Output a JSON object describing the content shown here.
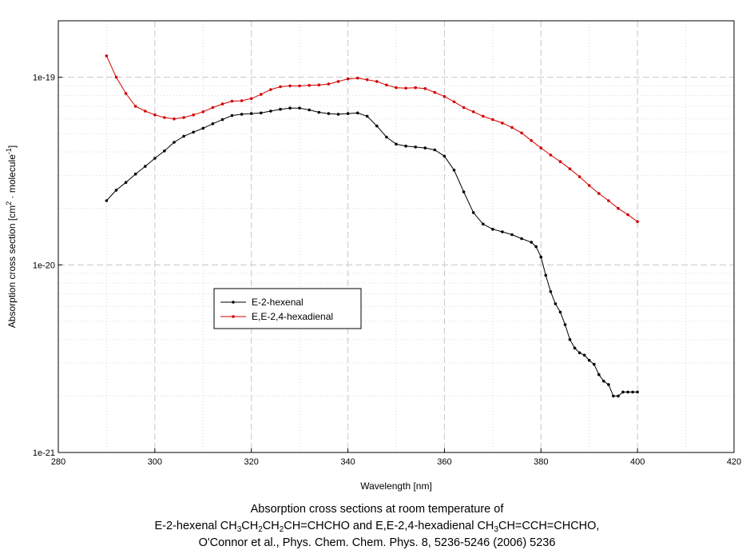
{
  "chart_data": {
    "type": "line",
    "xlabel": "Wavelength [nm]",
    "ylabel_prefix": "Absorption cross section [cm",
    "ylabel_sup1": "2",
    "ylabel_mid": " · molecule",
    "ylabel_sup2": "-1",
    "ylabel_suffix": "]",
    "x_ticks": [
      "280",
      "300",
      "320",
      "340",
      "360",
      "380",
      "400",
      "420"
    ],
    "y_ticks": [
      "1e-21",
      "1e-20",
      "1e-19"
    ],
    "xlim": [
      280,
      420
    ],
    "ylim": [
      1e-21,
      2e-19
    ],
    "yscale": "log",
    "grid": true,
    "legend_position": "center-left",
    "series": [
      {
        "name": "E-2-hexenal",
        "color": "#000000",
        "x": [
          290,
          292,
          294,
          296,
          298,
          300,
          302,
          304,
          306,
          308,
          310,
          312,
          314,
          316,
          318,
          320,
          322,
          324,
          326,
          328,
          330,
          332,
          334,
          336,
          338,
          340,
          342,
          344,
          346,
          348,
          350,
          352,
          354,
          356,
          358,
          360,
          362,
          364,
          366,
          368,
          370,
          372,
          374,
          376,
          378,
          379,
          380,
          381,
          382,
          383,
          384,
          385,
          386,
          387,
          388,
          389,
          390,
          391,
          392,
          393,
          394,
          395,
          396,
          397,
          398,
          399,
          400
        ],
        "y": [
          2.2e-20,
          2.5e-20,
          2.75e-20,
          3.05e-20,
          3.35e-20,
          3.7e-20,
          4.05e-20,
          4.5e-20,
          4.85e-20,
          5.1e-20,
          5.35e-20,
          5.65e-20,
          5.95e-20,
          6.25e-20,
          6.35e-20,
          6.4e-20,
          6.45e-20,
          6.6e-20,
          6.75e-20,
          6.85e-20,
          6.85e-20,
          6.7e-20,
          6.5e-20,
          6.4e-20,
          6.35e-20,
          6.4e-20,
          6.45e-20,
          6.2e-20,
          5.5e-20,
          4.8e-20,
          4.4e-20,
          4.3e-20,
          4.25e-20,
          4.2e-20,
          4.1e-20,
          3.8e-20,
          3.2e-20,
          2.45e-20,
          1.9e-20,
          1.65e-20,
          1.55e-20,
          1.5e-20,
          1.45e-20,
          1.38e-20,
          1.32e-20,
          1.25e-20,
          1.1e-20,
          8.8e-21,
          7.2e-21,
          6.2e-21,
          5.6e-21,
          4.8e-21,
          4e-21,
          3.6e-21,
          3.4e-21,
          3.3e-21,
          3.1e-21,
          2.95e-21,
          2.6e-21,
          2.4e-21,
          2.3e-21,
          2e-21,
          2e-21,
          2.1e-21,
          2.1e-21,
          2.1e-21,
          2.1e-21
        ]
      },
      {
        "name": "E,E-2,4-hexadienal",
        "color": "#d40000",
        "x": [
          290,
          292,
          294,
          296,
          298,
          300,
          302,
          304,
          306,
          308,
          310,
          312,
          314,
          316,
          318,
          320,
          322,
          324,
          326,
          328,
          330,
          332,
          334,
          336,
          338,
          340,
          342,
          344,
          346,
          348,
          350,
          352,
          354,
          356,
          358,
          360,
          362,
          364,
          366,
          368,
          370,
          372,
          374,
          376,
          378,
          380,
          382,
          384,
          386,
          388,
          390,
          392,
          394,
          396,
          398,
          400
        ],
        "y": [
          1.3e-19,
          1e-19,
          8.2e-20,
          7e-20,
          6.6e-20,
          6.3e-20,
          6.1e-20,
          6e-20,
          6.1e-20,
          6.3e-20,
          6.55e-20,
          6.9e-20,
          7.2e-20,
          7.45e-20,
          7.5e-20,
          7.7e-20,
          8.1e-20,
          8.6e-20,
          8.9e-20,
          9e-20,
          9e-20,
          9.05e-20,
          9.1e-20,
          9.2e-20,
          9.5e-20,
          9.8e-20,
          9.9e-20,
          9.7e-20,
          9.5e-20,
          9.1e-20,
          8.8e-20,
          8.75e-20,
          8.8e-20,
          8.7e-20,
          8.3e-20,
          7.9e-20,
          7.4e-20,
          6.9e-20,
          6.55e-20,
          6.2e-20,
          5.95e-20,
          5.7e-20,
          5.4e-20,
          5.05e-20,
          4.6e-20,
          4.2e-20,
          3.85e-20,
          3.55e-20,
          3.25e-20,
          2.95e-20,
          2.65e-20,
          2.4e-20,
          2.2e-20,
          2e-20,
          1.85e-20,
          1.7e-20
        ]
      }
    ]
  },
  "caption": {
    "line1": "Absorption cross sections at room temperature of",
    "line2_a": "E-2-hexenal CH",
    "line2_b": "3",
    "line2_c": "CH",
    "line2_d": "2",
    "line2_e": "CH",
    "line2_f": "2",
    "line2_g": "CH=CHCHO and E,E-2,4-hexadienal CH",
    "line2_h": "3",
    "line2_i": "CH=CCH=CHCHO,",
    "line3": "O'Connor et al., Phys. Chem. Chem. Phys. 8, 5236-5246 (2006) 5236"
  }
}
